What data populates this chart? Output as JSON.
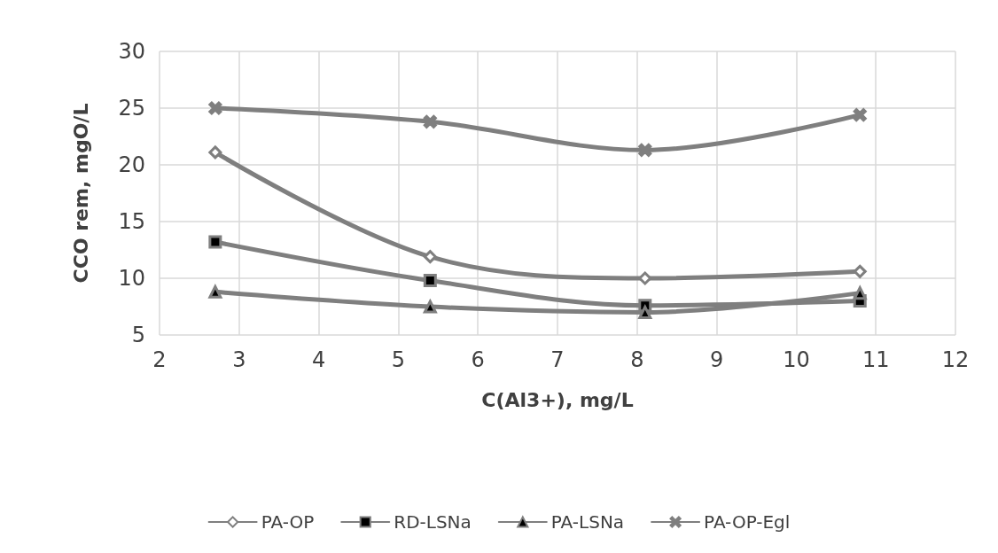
{
  "chart_data": {
    "type": "line",
    "xlabel": "C(Al3+), mg/L",
    "ylabel": "CCO rem, mgO/L",
    "x": [
      2.7,
      5.4,
      8.1,
      10.8
    ],
    "series": [
      {
        "name": "PA-OP",
        "color": "#7f7f7f",
        "marker": "diamond",
        "values": [
          21.1,
          11.9,
          10.0,
          10.6
        ]
      },
      {
        "name": "RD-LSNa",
        "color": "#7f7f7f",
        "marker": "square",
        "values": [
          13.2,
          9.8,
          7.6,
          8.0
        ]
      },
      {
        "name": "PA-LSNa",
        "color": "#7f7f7f",
        "marker": "triangle",
        "values": [
          8.8,
          7.5,
          7.0,
          8.7
        ]
      },
      {
        "name": "PA-OP-Egl",
        "color": "#7f7f7f",
        "marker": "cross",
        "values": [
          25.0,
          23.8,
          21.3,
          24.4
        ]
      }
    ],
    "xlim": [
      2,
      12
    ],
    "xticks": [
      2,
      3,
      4,
      5,
      6,
      7,
      8,
      9,
      10,
      11,
      12
    ],
    "ylim": [
      5,
      30
    ],
    "yticks": [
      5,
      10,
      15,
      20,
      25,
      30
    ],
    "grid": true,
    "legend": "bottom",
    "line_style": "solid"
  }
}
